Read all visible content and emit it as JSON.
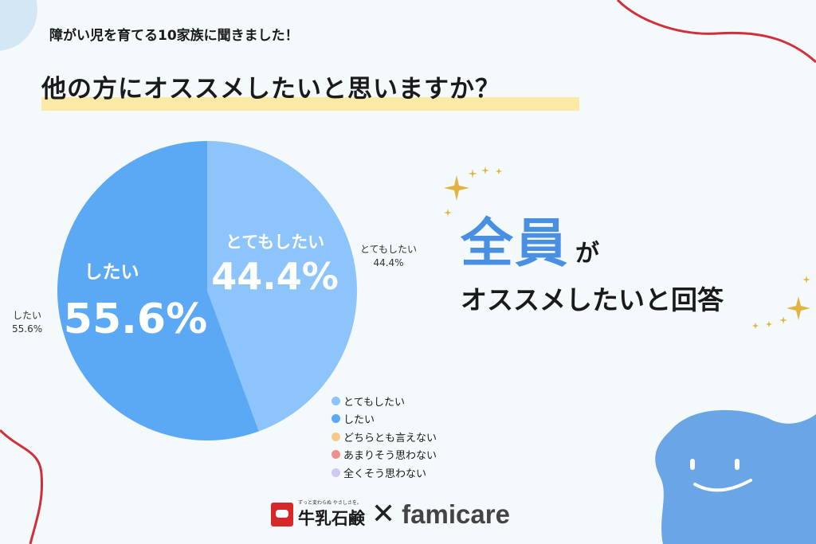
{
  "header": {
    "kicker": "障がい児を育てる10家族に聞きました！",
    "title": "他の方にオススメしたいと思いますか？"
  },
  "chart_data": {
    "type": "pie",
    "slices": [
      {
        "label": "とてもしたい",
        "value": 44.4,
        "pct_text": "44.4%",
        "color": "#8cc4fb",
        "outer_label": "とてもしたい",
        "outer_value": "44.4%"
      },
      {
        "label": "したい",
        "value": 55.6,
        "pct_text": "55.6%",
        "color": "#5ba8f5",
        "outer_label": "したい",
        "outer_value": "55.6%"
      }
    ],
    "legend": [
      {
        "label": "とてもしたい",
        "color": "#8cc4fb"
      },
      {
        "label": "したい",
        "color": "#5ba8f5"
      },
      {
        "label": "どちらとも言えない",
        "color": "#f5c98a"
      },
      {
        "label": "あまりそう思わない",
        "color": "#f0908e"
      },
      {
        "label": "全くそう思わない",
        "color": "#cfc8f2"
      }
    ],
    "legend_position": "bottom-right"
  },
  "headline": {
    "strong": "全員",
    "particle": "が",
    "line2": "オススメしたいと回答"
  },
  "brand": {
    "tagline": "ずっと変わらぬ やさしさを。",
    "left_name": "牛乳石鹸",
    "separator": "✕",
    "right_name": "famicare"
  },
  "colors": {
    "background": "#f4f9fc",
    "accent_blue": "#4a90e2",
    "highlight_yellow": "#fbe9a6",
    "deco_red": "#d32f3a",
    "blob_blue": "#6aa6e6"
  }
}
